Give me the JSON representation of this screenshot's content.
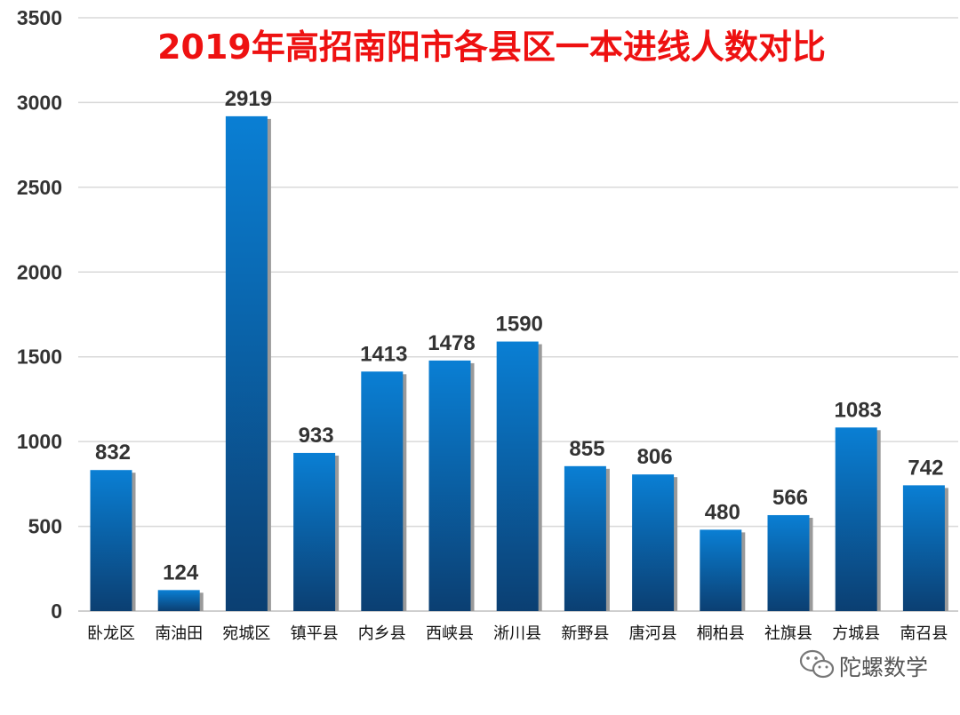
{
  "chart_data": {
    "type": "bar",
    "title": "2019年高招南阳市各县区一本进线人数对比",
    "xlabel": "",
    "ylabel": "",
    "ylim": [
      0,
      3500
    ],
    "yticks": [
      0,
      500,
      1000,
      1500,
      2000,
      2500,
      3000,
      3500
    ],
    "grid": true,
    "categories": [
      "卧龙区",
      "南油田",
      "宛城区",
      "镇平县",
      "内乡县",
      "西峡县",
      "淅川县",
      "新野县",
      "唐河县",
      "桐柏县",
      "社旗县",
      "方城县",
      "南召县"
    ],
    "values": [
      832,
      124,
      2919,
      933,
      1413,
      1478,
      1590,
      855,
      806,
      480,
      566,
      1083,
      742
    ],
    "colors": {
      "bar_top": "#0a7fd4",
      "bar_bottom": "#0b3f72",
      "shadow": "#9a9a9a",
      "grid": "#d9d9d9",
      "title": "#ee1111"
    }
  },
  "watermark": {
    "text": "陀螺数学",
    "icon": "wechat-icon"
  }
}
